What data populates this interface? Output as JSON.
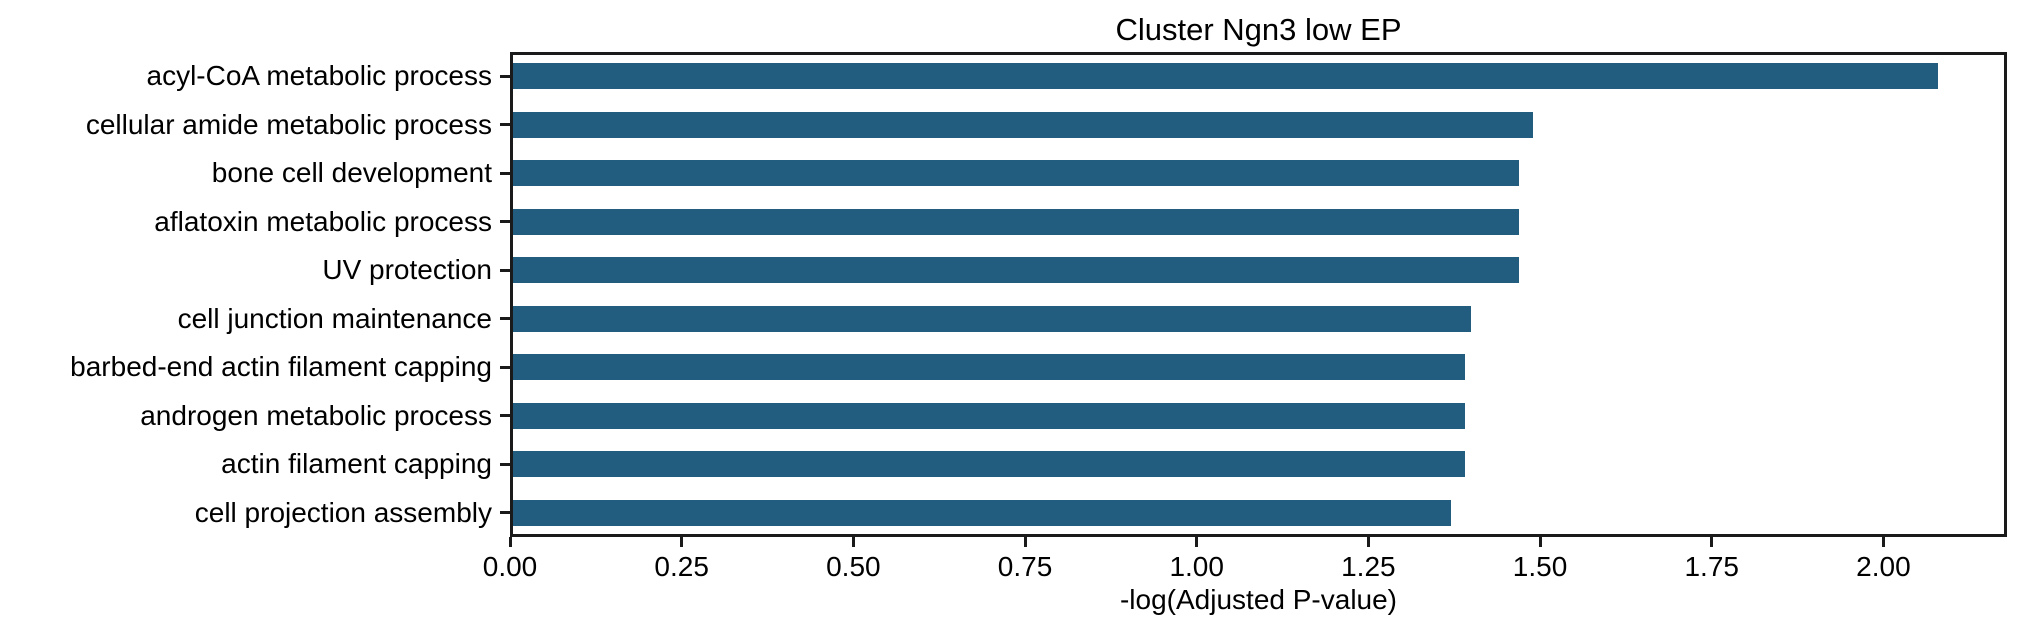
{
  "title": "Cluster Ngn3 low EP",
  "chart_data": {
    "type": "bar",
    "orientation": "horizontal",
    "title": "Cluster Ngn3 low EP",
    "categories": [
      "acyl-CoA metabolic process",
      "cellular amide metabolic process",
      "bone cell development",
      "aflatoxin metabolic process",
      "UV protection",
      "cell junction maintenance",
      "barbed-end actin filament capping",
      "androgen metabolic process",
      "actin filament capping",
      "cell projection assembly"
    ],
    "values": [
      2.08,
      1.49,
      1.47,
      1.47,
      1.47,
      1.4,
      1.39,
      1.39,
      1.39,
      1.37
    ],
    "xlabel": "-log(Adjusted P-value)",
    "ylabel": "",
    "xlim": [
      0,
      2.18
    ],
    "xticks": [
      0,
      0.25,
      0.5,
      0.75,
      1.0,
      1.25,
      1.5,
      1.75,
      2.0
    ],
    "xtick_labels": [
      "0.00",
      "0.25",
      "0.50",
      "0.75",
      "1.00",
      "1.25",
      "1.50",
      "1.75",
      "2.00"
    ],
    "grid": false,
    "legend": null,
    "bar_fraction": 0.54,
    "colors": {
      "bar": "#225d80",
      "text": "#000000",
      "axis": "#1a1a1a",
      "background": "#ffffff"
    }
  }
}
